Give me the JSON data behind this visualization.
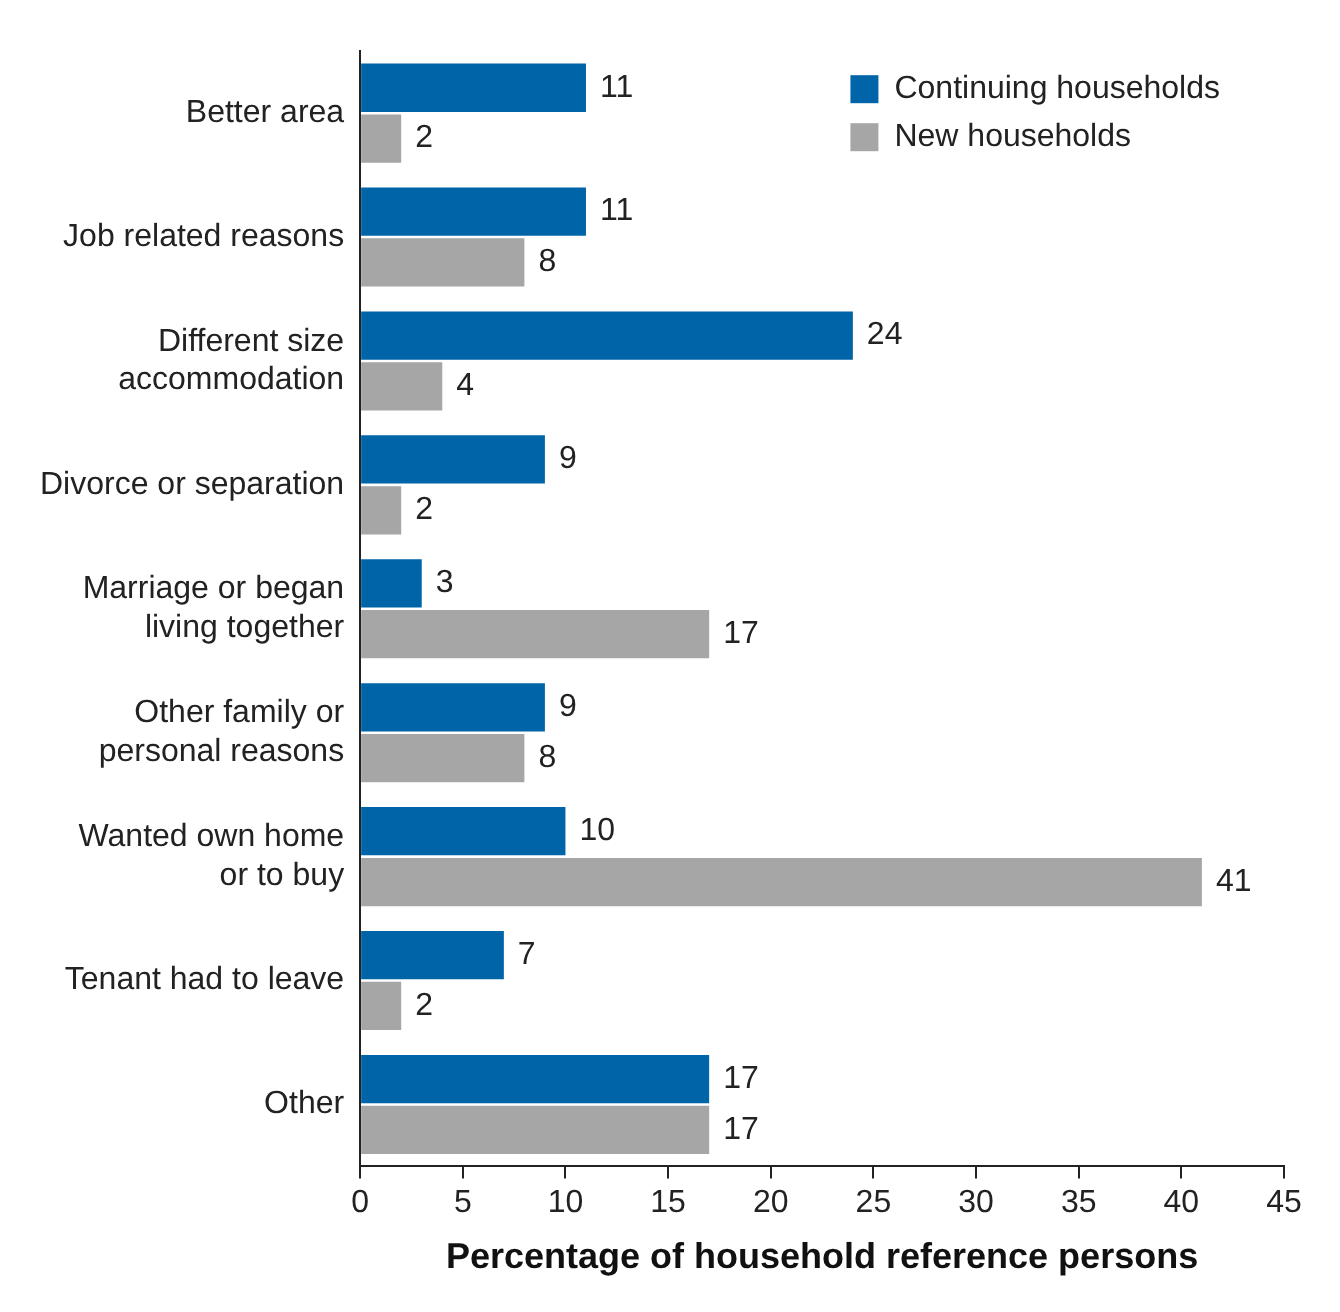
{
  "chart_data": {
    "type": "bar",
    "orientation": "horizontal",
    "xlabel": "Percentage of household reference persons",
    "categories": [
      "Better area",
      "Job related reasons",
      "Different size\naccommodation",
      "Divorce or separation",
      "Marriage or began\nliving together",
      "Other family or\npersonal reasons",
      "Wanted own home\nor to buy",
      "Tenant had to leave",
      "Other"
    ],
    "series": [
      {
        "name": "Continuing households",
        "color": "#0064a8",
        "values": [
          11,
          11,
          24,
          9,
          3,
          9,
          10,
          7,
          17
        ]
      },
      {
        "name": "New households",
        "color": "#a6a6a6",
        "values": [
          2,
          8,
          4,
          2,
          17,
          8,
          41,
          2,
          17
        ]
      }
    ],
    "xlim": [
      0,
      45
    ],
    "xticks": [
      0,
      5,
      10,
      15,
      20,
      25,
      30,
      35,
      40,
      45
    ],
    "data_labels": true,
    "legend": "top right",
    "grid": false
  }
}
